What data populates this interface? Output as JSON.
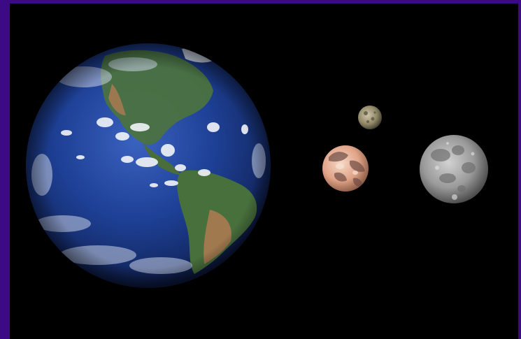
{
  "bodies": [
    {
      "name": "earth",
      "icon": "earth-globe-icon"
    },
    {
      "name": "small-rocky-moon",
      "icon": "small-moon-icon"
    },
    {
      "name": "pinkish-moon",
      "icon": "pink-moon-icon"
    },
    {
      "name": "grey-moon",
      "icon": "grey-moon-icon"
    }
  ],
  "colors": {
    "frame": "#3d0a86",
    "space": "#000000",
    "ocean": "#1e3a8c",
    "land": "#3f6a3a",
    "desert": "#b07a52",
    "cloud": "#f2f4f8",
    "pink_moon": "#e7b39a",
    "grey_moon": "#9a9a9a"
  }
}
